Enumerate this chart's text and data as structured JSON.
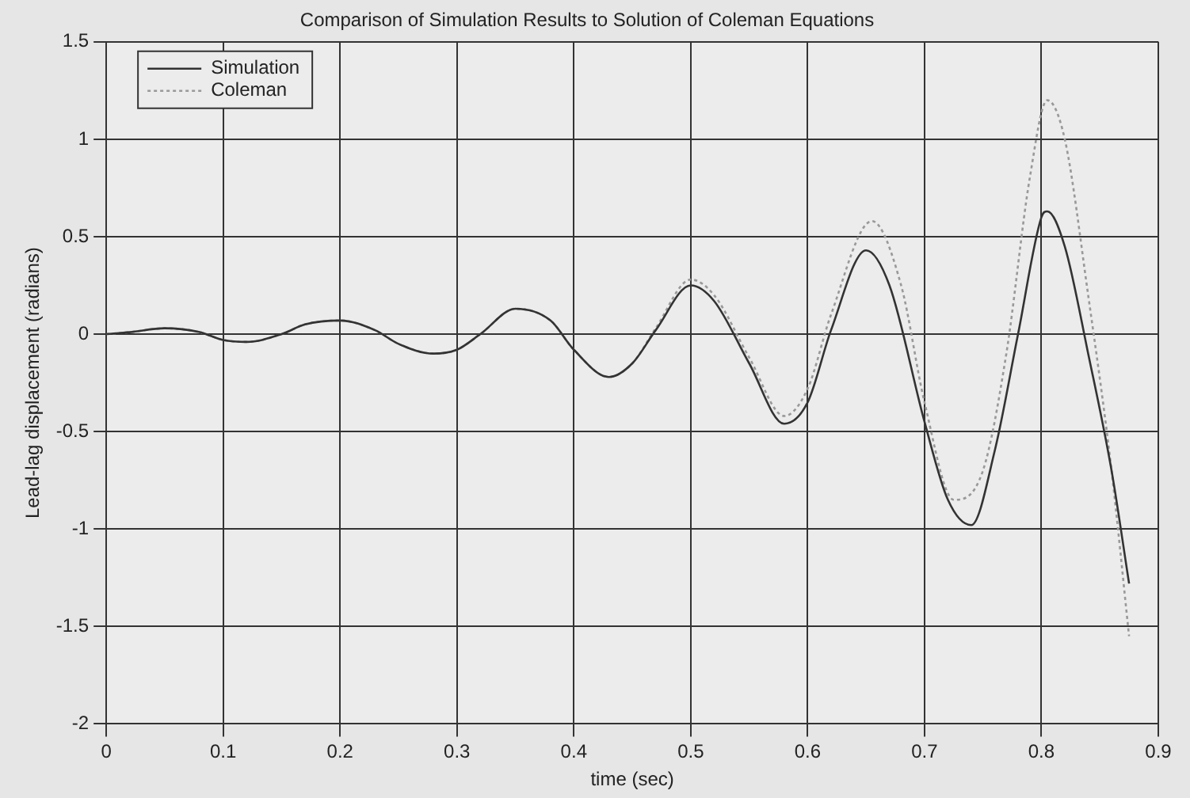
{
  "chart_data": {
    "type": "line",
    "title": "Comparison of Simulation Results to Solution of Coleman Equations",
    "xlabel": "time (sec)",
    "ylabel": "Lead-lag displacement (radians)",
    "xlim": [
      0,
      0.9
    ],
    "xticks": [
      0,
      0.1,
      0.2,
      0.3,
      0.4,
      0.5,
      0.6,
      0.7,
      0.8,
      0.9
    ],
    "ylim": [
      -2,
      1.5
    ],
    "yticks": [
      -2,
      -1.5,
      -1,
      -0.5,
      0,
      0.5,
      1,
      1.5
    ],
    "grid": true,
    "legend": "top left",
    "marker": "none",
    "series": [
      {
        "name": "Simulation",
        "color": "#333333",
        "line_style": "solid",
        "x": [
          0,
          0.02,
          0.05,
          0.08,
          0.1,
          0.12,
          0.15,
          0.17,
          0.2,
          0.23,
          0.25,
          0.28,
          0.3,
          0.32,
          0.35,
          0.38,
          0.4,
          0.43,
          0.45,
          0.47,
          0.5,
          0.52,
          0.55,
          0.58,
          0.6,
          0.62,
          0.65,
          0.67,
          0.7,
          0.72,
          0.74,
          0.76,
          0.78,
          0.8,
          0.805,
          0.82,
          0.84,
          0.86,
          0.875
        ],
        "values": [
          0,
          0.01,
          0.03,
          0.01,
          -0.03,
          -0.04,
          0,
          0.05,
          0.07,
          0.02,
          -0.05,
          -0.1,
          -0.08,
          0,
          0.13,
          0.07,
          -0.08,
          -0.22,
          -0.15,
          0.02,
          0.25,
          0.17,
          -0.15,
          -0.46,
          -0.35,
          0.02,
          0.43,
          0.25,
          -0.45,
          -0.85,
          -0.98,
          -0.6,
          0,
          0.6,
          0.63,
          0.45,
          -0.1,
          -0.7,
          -1.28
        ]
      },
      {
        "name": "Coleman",
        "color": "#999999",
        "line_style": "dotted",
        "x": [
          0,
          0.02,
          0.05,
          0.08,
          0.1,
          0.12,
          0.15,
          0.17,
          0.2,
          0.23,
          0.25,
          0.28,
          0.3,
          0.32,
          0.35,
          0.38,
          0.4,
          0.43,
          0.45,
          0.47,
          0.5,
          0.52,
          0.55,
          0.58,
          0.6,
          0.62,
          0.655,
          0.68,
          0.7,
          0.725,
          0.75,
          0.77,
          0.79,
          0.805,
          0.82,
          0.84,
          0.86,
          0.875
        ],
        "values": [
          0,
          0.01,
          0.03,
          0.01,
          -0.03,
          -0.04,
          0,
          0.05,
          0.07,
          0.02,
          -0.05,
          -0.1,
          -0.08,
          0,
          0.13,
          0.07,
          -0.08,
          -0.22,
          -0.15,
          0.03,
          0.28,
          0.2,
          -0.12,
          -0.42,
          -0.28,
          0.1,
          0.58,
          0.25,
          -0.35,
          -0.85,
          -0.7,
          -0.1,
          0.8,
          1.2,
          1,
          0.2,
          -0.7,
          -1.55
        ]
      }
    ]
  }
}
